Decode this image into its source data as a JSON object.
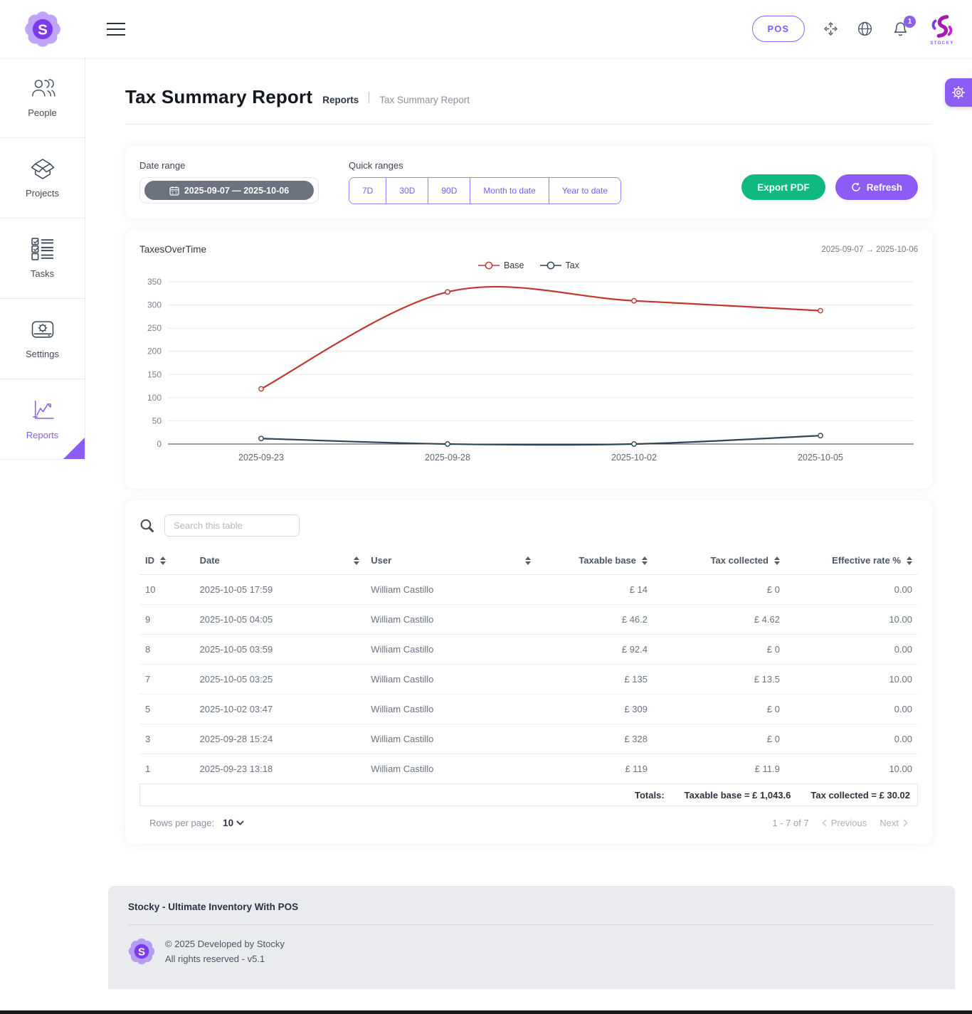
{
  "header": {
    "logo_letter": "S",
    "pos_label": "POS",
    "notification_count": "1",
    "brand_name": "STOCKY"
  },
  "sidebar": {
    "items": [
      {
        "label": "People",
        "icon": "people-icon",
        "active": false
      },
      {
        "label": "Projects",
        "icon": "projects-icon",
        "active": false
      },
      {
        "label": "Tasks",
        "icon": "tasks-icon",
        "active": false
      },
      {
        "label": "Settings",
        "icon": "settings-icon",
        "active": false
      },
      {
        "label": "Reports",
        "icon": "reports-icon",
        "active": true
      }
    ]
  },
  "page": {
    "title": "Tax Summary Report",
    "breadcrumb": [
      "Reports",
      "Tax Summary Report"
    ]
  },
  "filters": {
    "date_range_label": "Date range",
    "date_range_value": "2025-09-07 — 2025-10-06",
    "quick_ranges_label": "Quick ranges",
    "quick_ranges": [
      "7D",
      "30D",
      "90D",
      "Month to date",
      "Year to date"
    ],
    "export_pdf_label": "Export PDF",
    "refresh_label": "Refresh"
  },
  "chart": {
    "title": "TaxesOverTime",
    "range_caption": "2025-09-07 → 2025-10-06"
  },
  "chart_data": {
    "type": "line",
    "categories": [
      "2025-09-23",
      "2025-09-28",
      "2025-10-02",
      "2025-10-05"
    ],
    "series": [
      {
        "name": "Base",
        "color": "#c23531",
        "values": [
          119,
          328,
          309,
          287.6
        ]
      },
      {
        "name": "Tax",
        "color": "#2f4554",
        "values": [
          11.9,
          0,
          0,
          18.12
        ]
      }
    ],
    "ylim": [
      0,
      350
    ],
    "ytick_step": 50,
    "grid": true,
    "legend_position": "top-center",
    "smooth": true
  },
  "table": {
    "search_placeholder": "Search this table",
    "columns": [
      {
        "label": "ID",
        "sortable": true,
        "align": "left"
      },
      {
        "label": "Date",
        "sortable": true,
        "align": "left"
      },
      {
        "label": "User",
        "sortable": true,
        "align": "left"
      },
      {
        "label": "Taxable base",
        "sortable": true,
        "align": "right"
      },
      {
        "label": "Tax collected",
        "sortable": true,
        "align": "right"
      },
      {
        "label": "Effective rate %",
        "sortable": true,
        "align": "right"
      }
    ],
    "rows": [
      [
        "10",
        "2025-10-05 17:59",
        "William Castillo",
        "£ 14",
        "£ 0",
        "0.00"
      ],
      [
        "9",
        "2025-10-05 04:05",
        "William Castillo",
        "£ 46.2",
        "£ 4.62",
        "10.00"
      ],
      [
        "8",
        "2025-10-05 03:59",
        "William Castillo",
        "£ 92.4",
        "£ 0",
        "0.00"
      ],
      [
        "7",
        "2025-10-05 03:25",
        "William Castillo",
        "£ 135",
        "£ 13.5",
        "10.00"
      ],
      [
        "5",
        "2025-10-02 03:47",
        "William Castillo",
        "£ 309",
        "£ 0",
        "0.00"
      ],
      [
        "3",
        "2025-09-28 15:24",
        "William Castillo",
        "£ 328",
        "£ 0",
        "0.00"
      ],
      [
        "1",
        "2025-09-23 13:18",
        "William Castillo",
        "£ 119",
        "£ 11.9",
        "10.00"
      ]
    ],
    "totals": {
      "label": "Totals:",
      "taxable_base": "Taxable base = £ 1,043.6",
      "tax_collected": "Tax collected = £ 30.02"
    },
    "pagination": {
      "rows_per_page_label": "Rows per page:",
      "rows_per_page_value": "10",
      "range_text": "1 - 7 of 7",
      "previous_label": "Previous",
      "next_label": "Next"
    }
  },
  "footer": {
    "title": "Stocky - Ultimate Inventory With POS",
    "copyright": "© 2025 Developed by Stocky",
    "rights": "All rights reserved - v5.1"
  },
  "colors": {
    "accent": "#8b5cf6",
    "green": "#10b981",
    "base_series": "#c23531",
    "tax_series": "#2f4554"
  }
}
